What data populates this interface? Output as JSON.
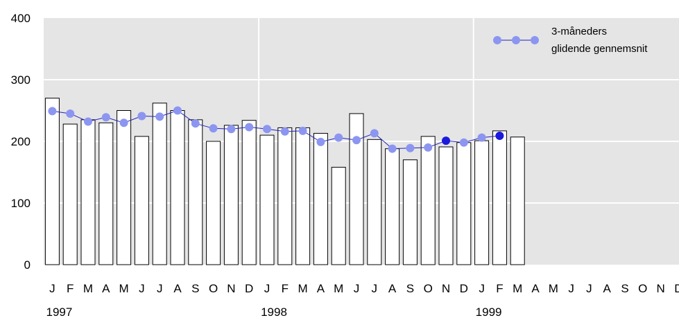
{
  "chart_data": {
    "type": "bar",
    "y_ticks": [
      "0",
      "100",
      "200",
      "300",
      "400"
    ],
    "ylim": [
      0,
      400
    ],
    "month_labels": [
      "J",
      "F",
      "M",
      "A",
      "M",
      "J",
      "J",
      "A",
      "S",
      "O",
      "N",
      "D",
      "J",
      "F",
      "M",
      "A",
      "M",
      "J",
      "J",
      "A",
      "S",
      "O",
      "N",
      "D",
      "J",
      "F",
      "M",
      "A",
      "M",
      "J",
      "J",
      "A",
      "S",
      "O",
      "N",
      "D"
    ],
    "year_labels": [
      "1997",
      "1998",
      "1999"
    ],
    "values": [
      270,
      228,
      235,
      230,
      250,
      208,
      262,
      250,
      235,
      200,
      226,
      234,
      210,
      222,
      222,
      213,
      158,
      245,
      203,
      188,
      170,
      208,
      191,
      198,
      201,
      217,
      207
    ],
    "moving_average": [
      249,
      245,
      232,
      239,
      230,
      241,
      240,
      250,
      229,
      221,
      220,
      223,
      220,
      216,
      217,
      199,
      206,
      202,
      213,
      188,
      189,
      190,
      201,
      198,
      206,
      209
    ],
    "highlighted_points": [
      22,
      25
    ],
    "legend": {
      "line1": "3-måneders",
      "line2": "glidende gennemsnit",
      "placement": "top-right"
    },
    "grid": true,
    "colors": {
      "plot_bg": "#e5e5e5",
      "bar_fill": "#ffffff",
      "bar_stroke": "#000000",
      "line": "#1f1fbf",
      "marker": "#8c96f0",
      "marker_highlight": "#1a1adc",
      "grid": "#ffffff"
    }
  }
}
